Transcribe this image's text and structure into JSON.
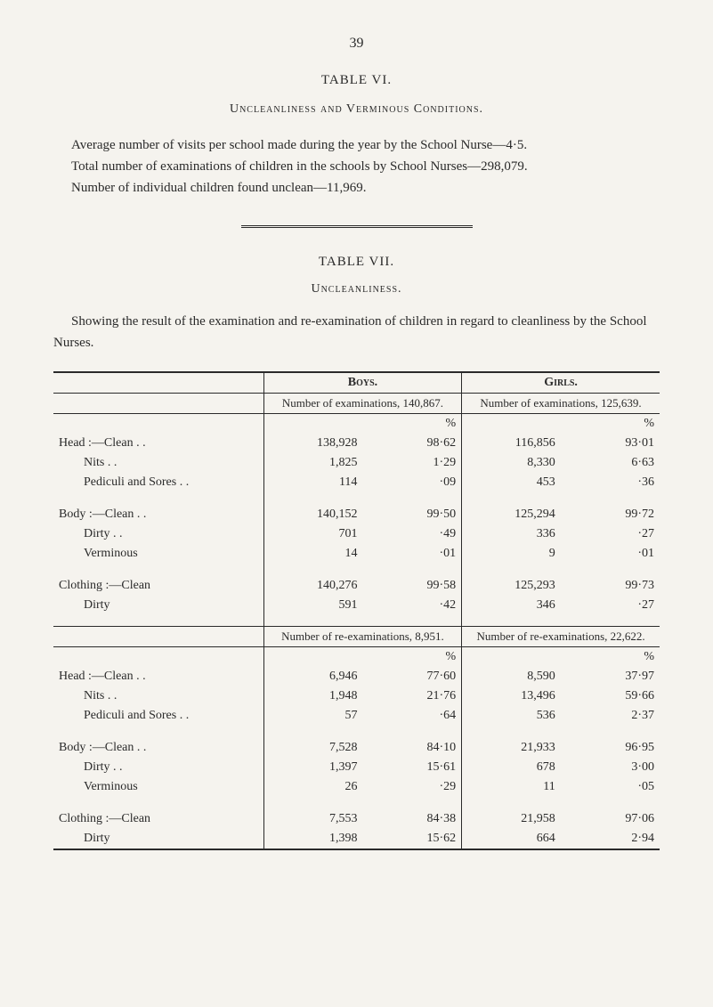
{
  "page_number": "39",
  "table6": {
    "title": "TABLE VI.",
    "subtitle": "Uncleanliness and Verminous Conditions.",
    "line1": "Average number of visits per school made during the year by the School Nurse—4·5.",
    "line2": "Total number of examinations of children in the schools by School Nurses—298,079.",
    "line3": "Number of individual children found unclean—11,969."
  },
  "table7": {
    "title": "TABLE VII.",
    "subtitle": "Uncleanliness.",
    "intro": "Showing the result of the examination and re-examination of children in regard to cleanliness by the School Nurses.",
    "boys_header": "Boys.",
    "girls_header": "Girls.",
    "exam_boys": "Number of examinations, 140,867.",
    "exam_girls": "Number of examinations, 125,639.",
    "reexam_boys": "Number of re-examinations, 8,951.",
    "reexam_girls": "Number of re-examinations, 22,622.",
    "pct_symbol": "%",
    "groups_exam": [
      {
        "label": "Head :—",
        "rows": [
          {
            "name": "Clean . .",
            "bn": "138,928",
            "bp": "98·62",
            "gn": "116,856",
            "gp": "93·01"
          },
          {
            "name": "Nits . .",
            "bn": "1,825",
            "bp": "1·29",
            "gn": "8,330",
            "gp": "6·63"
          },
          {
            "name": "Pediculi and Sores . .",
            "bn": "114",
            "bp": "·09",
            "gn": "453",
            "gp": "·36"
          }
        ]
      },
      {
        "label": "Body :—",
        "rows": [
          {
            "name": "Clean . .",
            "bn": "140,152",
            "bp": "99·50",
            "gn": "125,294",
            "gp": "99·72"
          },
          {
            "name": "Dirty . .",
            "bn": "701",
            "bp": "·49",
            "gn": "336",
            "gp": "·27"
          },
          {
            "name": "Verminous",
            "bn": "14",
            "bp": "·01",
            "gn": "9",
            "gp": "·01"
          }
        ]
      },
      {
        "label": "Clothing :—",
        "rows": [
          {
            "name": "Clean",
            "bn": "140,276",
            "bp": "99·58",
            "gn": "125,293",
            "gp": "99·73"
          },
          {
            "name": "Dirty",
            "bn": "591",
            "bp": "·42",
            "gn": "346",
            "gp": "·27"
          }
        ]
      }
    ],
    "groups_reexam": [
      {
        "label": "Head :—",
        "rows": [
          {
            "name": "Clean . .",
            "bn": "6,946",
            "bp": "77·60",
            "gn": "8,590",
            "gp": "37·97"
          },
          {
            "name": "Nits . .",
            "bn": "1,948",
            "bp": "21·76",
            "gn": "13,496",
            "gp": "59·66"
          },
          {
            "name": "Pediculi and Sores . .",
            "bn": "57",
            "bp": "·64",
            "gn": "536",
            "gp": "2·37"
          }
        ]
      },
      {
        "label": "Body :—",
        "rows": [
          {
            "name": "Clean . .",
            "bn": "7,528",
            "bp": "84·10",
            "gn": "21,933",
            "gp": "96·95"
          },
          {
            "name": "Dirty . .",
            "bn": "1,397",
            "bp": "15·61",
            "gn": "678",
            "gp": "3·00"
          },
          {
            "name": "Verminous",
            "bn": "26",
            "bp": "·29",
            "gn": "11",
            "gp": "·05"
          }
        ]
      },
      {
        "label": "Clothing :—",
        "rows": [
          {
            "name": "Clean",
            "bn": "7,553",
            "bp": "84·38",
            "gn": "21,958",
            "gp": "97·06"
          },
          {
            "name": "Dirty",
            "bn": "1,398",
            "bp": "15·62",
            "gn": "664",
            "gp": "2·94"
          }
        ]
      }
    ]
  },
  "style": {
    "background": "#f5f3ee",
    "text_color": "#2a2a2a",
    "rule_color": "#2a2a2a",
    "body_fontsize": 15,
    "table_fontsize": 14
  }
}
